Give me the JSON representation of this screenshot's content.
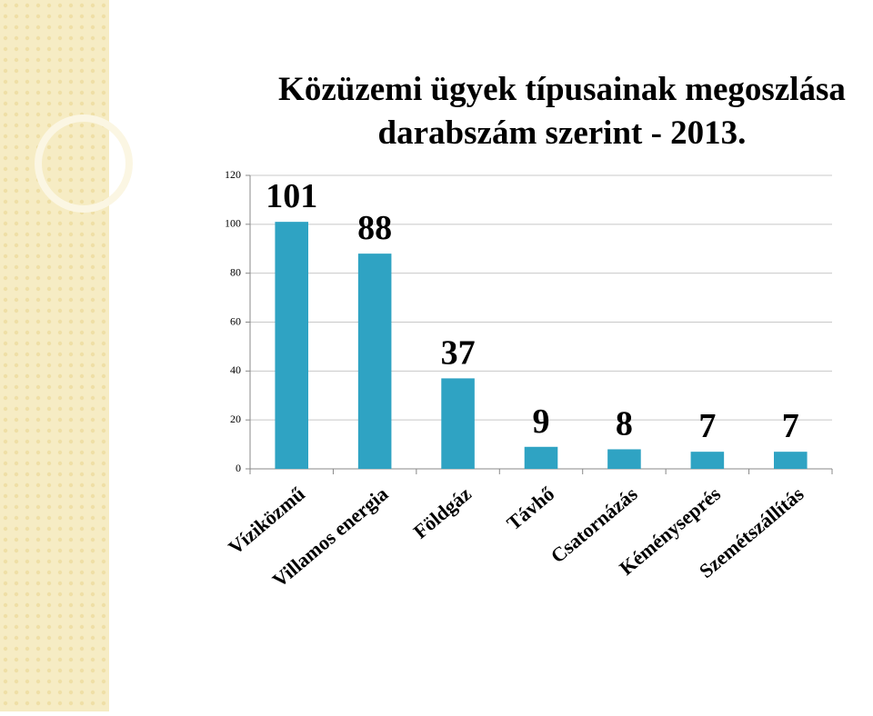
{
  "chart_data": {
    "type": "bar",
    "title": [
      "Közüzemi ügyek típusainak megoszlása",
      "darabszám szerint - 2013."
    ],
    "categories": [
      "Víziközmű",
      "Villamos energia",
      "Földgáz",
      "Távhő",
      "Csatornázás",
      "Kéményseprés",
      "Szemétszállítás"
    ],
    "values": [
      101,
      88,
      37,
      9,
      8,
      7,
      7
    ],
    "color": "#2fa3c3",
    "ylim": [
      0,
      120
    ],
    "yticks": [
      0,
      20,
      40,
      60,
      80,
      100,
      120
    ],
    "grid": true
  }
}
